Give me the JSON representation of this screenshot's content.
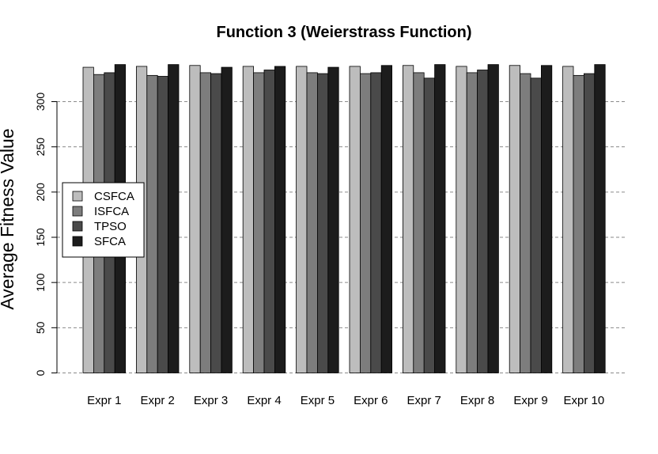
{
  "chart_data": {
    "type": "bar",
    "title": "Function 3 (Weierstrass Function)",
    "xlabel": "",
    "ylabel": "Average Fitness Value",
    "ylim": [
      0,
      340
    ],
    "yticks": [
      0,
      50,
      100,
      150,
      200,
      250,
      300
    ],
    "grid": "horizontal dashed",
    "legend_position": "left",
    "categories": [
      "Expr 1",
      "Expr 2",
      "Expr 3",
      "Expr 4",
      "Expr 5",
      "Expr 6",
      "Expr 7",
      "Expr 8",
      "Expr 9",
      "Expr 10"
    ],
    "series": [
      {
        "name": "CSFCA",
        "color": "#bdbdbd",
        "values": [
          338,
          339,
          340,
          339,
          339,
          339,
          340,
          339,
          340,
          339
        ]
      },
      {
        "name": "ISFCA",
        "color": "#7d7d7d",
        "values": [
          330,
          329,
          332,
          332,
          332,
          331,
          332,
          332,
          331,
          329
        ]
      },
      {
        "name": "TPSO",
        "color": "#4a4a4a",
        "values": [
          332,
          328,
          331,
          335,
          331,
          332,
          326,
          335,
          326,
          331
        ]
      },
      {
        "name": "SFCA",
        "color": "#1c1c1c",
        "values": [
          341,
          341,
          338,
          339,
          338,
          340,
          341,
          341,
          340,
          341
        ]
      }
    ]
  }
}
